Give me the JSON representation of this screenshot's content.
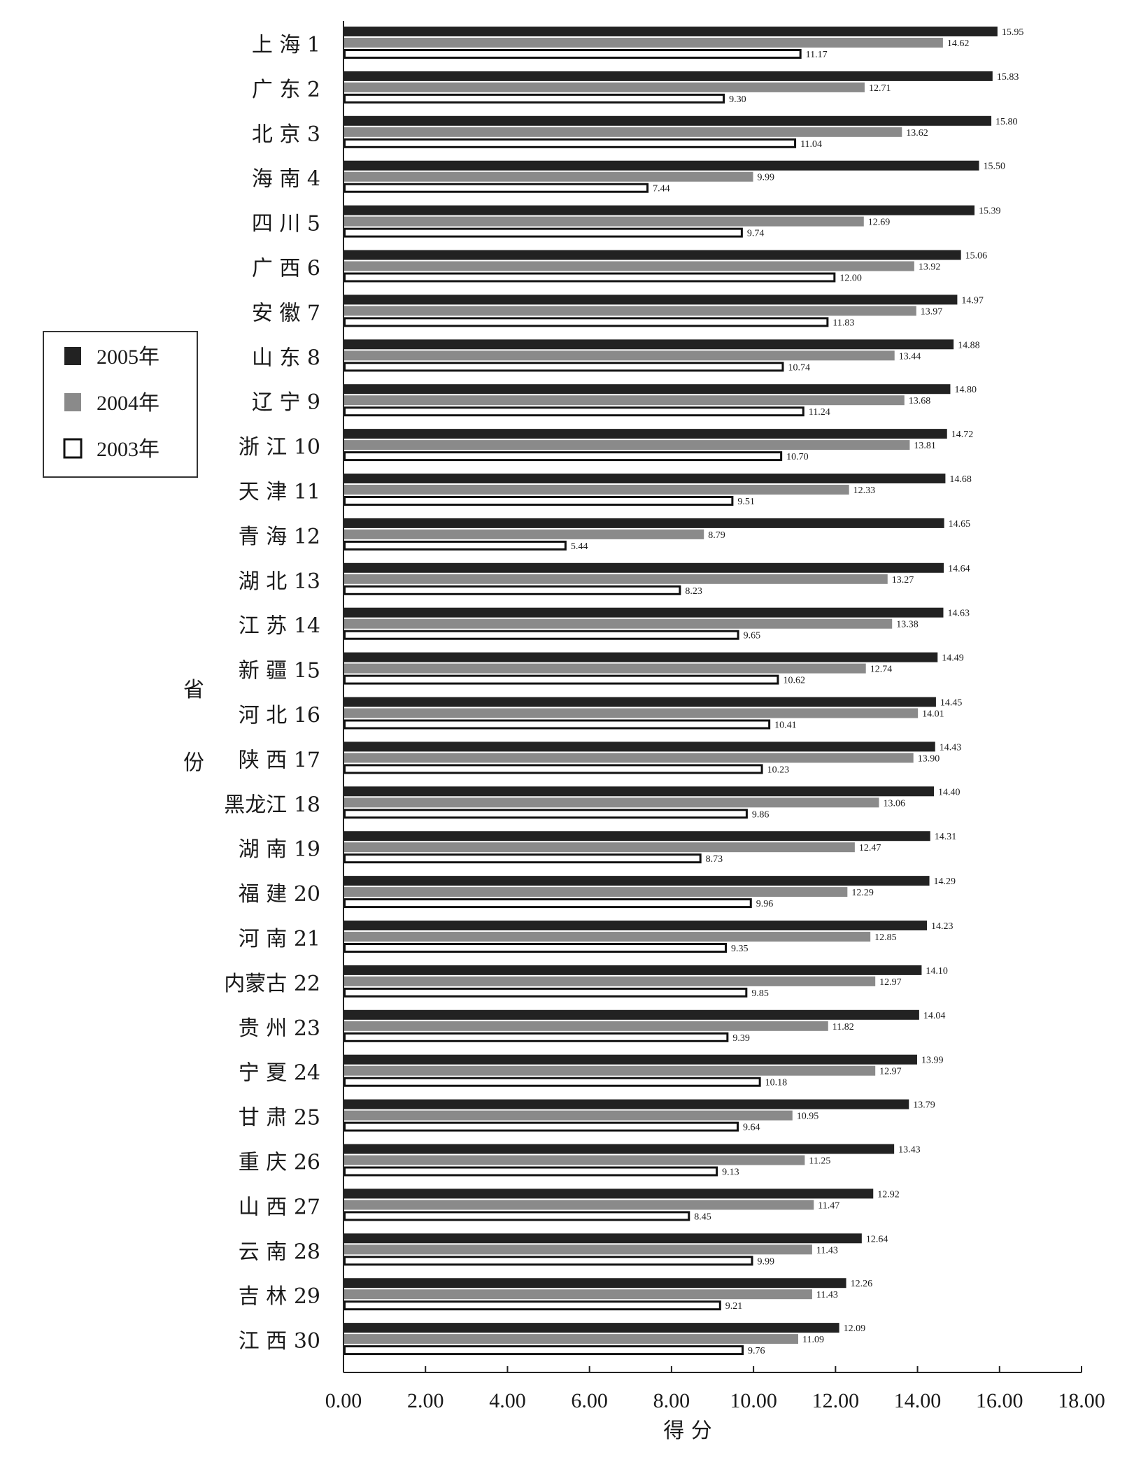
{
  "chart_data": {
    "type": "bar",
    "orientation": "horizontal",
    "categories": [
      "上 海 1",
      "广 东 2",
      "北 京 3",
      "海 南 4",
      "四 川 5",
      "广 西 6",
      "安 徽 7",
      "山 东 8",
      "辽 宁 9",
      "浙 江 10",
      "天 津 11",
      "青 海 12",
      "湖 北 13",
      "江 苏 14",
      "新 疆 15",
      "河 北 16",
      "陕 西 17",
      "黑龙江 18",
      "湖 南 19",
      "福 建 20",
      "河 南 21",
      "内蒙古 22",
      "贵 州 23",
      "宁 夏 24",
      "甘 肃 25",
      "重 庆 26",
      "山 西 27",
      "云 南 28",
      "吉 林 29",
      "江 西 30"
    ],
    "series": [
      {
        "name": "2005年",
        "color": "#222222",
        "values": [
          15.95,
          15.83,
          15.8,
          15.5,
          15.39,
          15.06,
          14.97,
          14.88,
          14.8,
          14.72,
          14.68,
          14.65,
          14.64,
          14.63,
          14.49,
          14.45,
          14.43,
          14.4,
          14.31,
          14.29,
          14.23,
          14.1,
          14.04,
          13.99,
          13.79,
          13.43,
          12.92,
          12.64,
          12.26,
          12.09
        ],
        "labels": [
          "15.95",
          "15.83",
          "15.80",
          "15.50",
          "15.39",
          "15.06",
          "14.97",
          "14.88",
          "14.80",
          "14.72",
          "14.68",
          "14.65",
          "14.64",
          "14.63",
          "14.49",
          "14.45",
          "14.43",
          "14.40",
          "14.31",
          "14.29",
          "14.23",
          "14.10",
          "14.04",
          "13.99",
          "13.79",
          "13.43",
          "12.92",
          "12.64",
          "12.26",
          "12.09"
        ]
      },
      {
        "name": "2004年",
        "color": "#8a8a8a",
        "values": [
          14.62,
          12.71,
          13.62,
          9.99,
          12.69,
          13.92,
          13.97,
          13.44,
          13.68,
          13.81,
          12.33,
          8.79,
          13.27,
          13.38,
          12.74,
          14.01,
          13.9,
          13.06,
          12.47,
          12.29,
          12.85,
          12.97,
          11.82,
          12.97,
          10.95,
          11.25,
          11.47,
          11.43,
          11.43,
          11.09
        ],
        "labels": [
          "14.62",
          "12.71",
          "13.62",
          "9.99",
          "12.69",
          "13.92",
          "13.97",
          "13.44",
          "13.68",
          "13.81",
          "12.33",
          "8.79",
          "13.27",
          "13.38",
          "12.74",
          "14.01",
          "13.90",
          "13.06",
          "12.47",
          "12.29",
          "12.85",
          "12.97",
          "11.82",
          "12.97",
          "10.95",
          "11.25",
          "11.47",
          "11.43",
          "11.43",
          "11.09"
        ]
      },
      {
        "name": "2003年",
        "color": "#ffffff",
        "values": [
          11.17,
          9.3,
          11.04,
          7.44,
          9.74,
          12.0,
          11.83,
          10.74,
          11.24,
          10.7,
          9.51,
          5.44,
          8.23,
          9.65,
          10.62,
          10.41,
          10.23,
          9.86,
          8.73,
          9.96,
          9.35,
          9.85,
          9.39,
          10.18,
          9.64,
          9.13,
          8.45,
          9.99,
          9.21,
          9.76
        ],
        "labels": [
          "11.17",
          "9.30",
          "11.04",
          "7.44",
          "9.74",
          "12.00",
          "11.83",
          "10.74",
          "11.24",
          "10.70",
          "9.51",
          "5.44",
          "8.23",
          "9.65",
          "10.62",
          "10.41",
          "10.23",
          "9.86",
          "8.73",
          "9.96",
          "9.35",
          "9.85",
          "9.39",
          "10.18",
          "9.64",
          "9.13",
          "8.45",
          "9.99",
          "9.21",
          "9.76"
        ]
      }
    ],
    "xlabel": "得 分",
    "ylabel": "省 份",
    "xlim": [
      0,
      18
    ],
    "xticks": [
      0,
      2,
      4,
      6,
      8,
      10,
      12,
      14,
      16,
      18
    ],
    "xtick_labels": [
      "0.00",
      "2.00",
      "4.00",
      "6.00",
      "8.00",
      "10.00",
      "12.00",
      "14.00",
      "16.00",
      "18.00"
    ],
    "grid": false,
    "legend": {
      "position": "left-middle",
      "entries": [
        "2005年",
        "2004年",
        "2003年"
      ]
    }
  }
}
